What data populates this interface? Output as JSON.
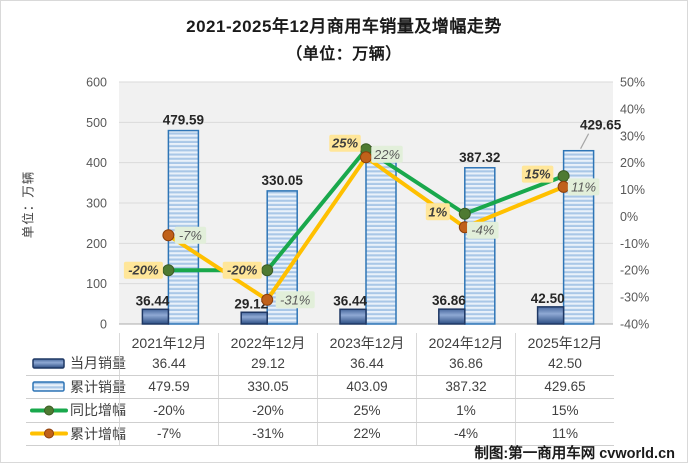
{
  "title": {
    "line1": "2021-2025年12月商用车销量及增幅走势",
    "line2": "（单位：万辆）"
  },
  "y_axis_title": "单位：万辆",
  "footer_credit": "制图:第一商用车网 cvworld.cn",
  "colors": {
    "plot_bg": "#F1F1F1",
    "gridline": "#DADADA",
    "axis_line": "#ABABAB",
    "axis_text": "#595959",
    "bar_label_text": "#262626",
    "monthly_bar_border": "#1F3864",
    "monthly_bar_top": "#49699E",
    "monthly_bar_mid": "#8FA9D4",
    "monthly_bar_bottom": "#2C4E83",
    "cumulative_bar_border": "#2E75B6",
    "cumulative_bar_base": "#E9F1FA",
    "cumulative_bar_stripe": "#A9C7E7",
    "yoy_line": "#19A84C",
    "yoy_marker": "#4E7A31",
    "yoy_marker_edge": "#3A5B24",
    "yoy_label_bg": "#FFE699",
    "yoy_label_text": "#3F3F3F",
    "cum_line": "#FFC000",
    "cum_marker": "#C0611A",
    "cum_marker_edge": "#8C3F0A",
    "cum_label_bg": "#E2EFDA",
    "cum_label_text": "#595959",
    "leader_line": "#A6A6A6"
  },
  "chart_data": {
    "type": "combo",
    "categories": [
      "2021年12月",
      "2022年12月",
      "2023年12月",
      "2024年12月",
      "2025年12月"
    ],
    "series": [
      {
        "name": "当月销量",
        "type": "bar",
        "style": "solid-dark-blue",
        "axis": "left",
        "values": [
          36.44,
          29.12,
          36.44,
          36.86,
          42.5
        ],
        "labels": [
          "36.44",
          "29.12",
          "36.44",
          "36.86",
          "42.50"
        ]
      },
      {
        "name": "累计销量",
        "type": "bar",
        "style": "striped-light-blue",
        "axis": "left",
        "values": [
          479.59,
          330.05,
          403.09,
          387.32,
          429.65
        ],
        "labels": [
          "479.59",
          "330.05",
          "403.09",
          "387.32",
          "429.65"
        ]
      },
      {
        "name": "同比增幅",
        "type": "line",
        "axis": "right",
        "values": [
          -20,
          -20,
          25,
          1,
          15
        ],
        "labels": [
          "-20%",
          "-20%",
          "25%",
          "1%",
          "15%"
        ]
      },
      {
        "name": "累计增幅",
        "type": "line",
        "axis": "right",
        "values": [
          -7,
          -31,
          22,
          -4,
          11
        ],
        "labels": [
          "-7%",
          "-31%",
          "22%",
          "-4%",
          "11%"
        ]
      }
    ],
    "left_axis": {
      "title": "单位：万辆",
      "min": 0,
      "max": 600,
      "step": 100,
      "tick_labels": [
        "600",
        "500",
        "400",
        "300",
        "200",
        "100",
        "0"
      ]
    },
    "right_axis": {
      "min": -40,
      "max": 50,
      "step": 10,
      "tick_labels": [
        "50%",
        "40%",
        "30%",
        "20%",
        "10%",
        "0%",
        "-10%",
        "-20%",
        "-30%",
        "-40%"
      ]
    },
    "grid": true,
    "legend_position": "bottom-table"
  }
}
